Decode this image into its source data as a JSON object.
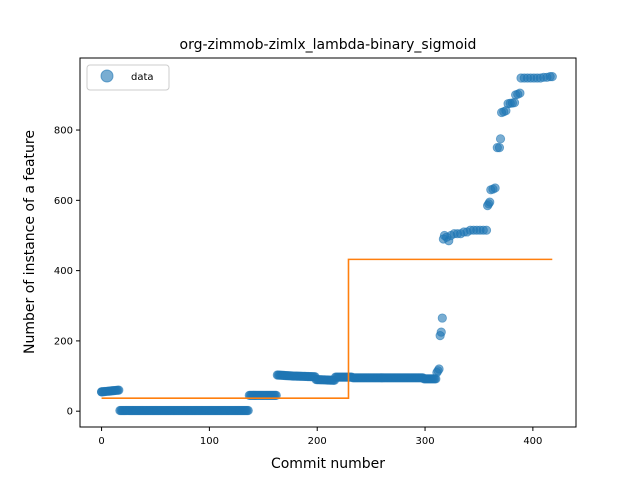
{
  "chart_data": {
    "type": "scatter",
    "title": "org-zimmob-zimlx_lambda-binary_sigmoid",
    "xlabel": "Commit number",
    "ylabel": "Number of instance of a feature",
    "xlim": [
      -20,
      440
    ],
    "ylim": [
      -45,
      1005
    ],
    "xticks": [
      0,
      100,
      200,
      300,
      400
    ],
    "yticks": [
      0,
      200,
      400,
      600,
      800
    ],
    "legend": {
      "position": "top-left",
      "entries": [
        "data"
      ]
    },
    "colors": {
      "data": "#1f77b4",
      "fit": "#ff7f0e"
    },
    "series": [
      {
        "name": "data",
        "kind": "scatter",
        "segments": [
          {
            "x_start": 0,
            "x_end": 16,
            "y_start": 55,
            "y_end": 60
          },
          {
            "x_start": 17,
            "x_end": 136,
            "y_start": 2,
            "y_end": 2
          },
          {
            "x_start": 137,
            "x_end": 162,
            "y_start": 45,
            "y_end": 45
          },
          {
            "x_start": 163,
            "x_end": 178,
            "y_start": 103,
            "y_end": 100
          },
          {
            "x_start": 179,
            "x_end": 198,
            "y_start": 100,
            "y_end": 98
          },
          {
            "x_start": 199,
            "x_end": 216,
            "y_start": 90,
            "y_end": 88
          },
          {
            "x_start": 217,
            "x_end": 232,
            "y_start": 97,
            "y_end": 97
          },
          {
            "x_start": 233,
            "x_end": 298,
            "y_start": 95,
            "y_end": 95
          },
          {
            "x_start": 299,
            "x_end": 310,
            "y_start": 92,
            "y_end": 92
          }
        ],
        "points": [
          [
            0,
            55
          ],
          [
            311,
            110
          ],
          [
            312,
            115
          ],
          [
            313,
            120
          ],
          [
            314,
            215
          ],
          [
            315,
            225
          ],
          [
            316,
            265
          ],
          [
            317,
            490
          ],
          [
            318,
            500
          ],
          [
            320,
            495
          ],
          [
            322,
            485
          ],
          [
            324,
            500
          ],
          [
            327,
            505
          ],
          [
            330,
            505
          ],
          [
            333,
            505
          ],
          [
            336,
            510
          ],
          [
            339,
            510
          ],
          [
            342,
            515
          ],
          [
            345,
            515
          ],
          [
            348,
            515
          ],
          [
            351,
            515
          ],
          [
            354,
            515
          ],
          [
            357,
            515
          ],
          [
            358,
            585
          ],
          [
            359,
            590
          ],
          [
            360,
            595
          ],
          [
            361,
            630
          ],
          [
            363,
            632
          ],
          [
            365,
            635
          ],
          [
            367,
            750
          ],
          [
            369,
            750
          ],
          [
            370,
            775
          ],
          [
            371,
            850
          ],
          [
            373,
            852
          ],
          [
            375,
            855
          ],
          [
            377,
            875
          ],
          [
            379,
            876
          ],
          [
            381,
            877
          ],
          [
            383,
            878
          ],
          [
            384,
            900
          ],
          [
            386,
            902
          ],
          [
            388,
            905
          ],
          [
            389,
            948
          ],
          [
            392,
            948
          ],
          [
            395,
            948
          ],
          [
            398,
            948
          ],
          [
            401,
            948
          ],
          [
            404,
            948
          ],
          [
            407,
            948
          ],
          [
            410,
            950
          ],
          [
            413,
            950
          ],
          [
            416,
            952
          ],
          [
            418,
            952
          ]
        ]
      },
      {
        "name": "",
        "kind": "step-line",
        "x": [
          0,
          229,
          229,
          418
        ],
        "y": [
          37,
          37,
          432,
          432
        ]
      }
    ]
  }
}
